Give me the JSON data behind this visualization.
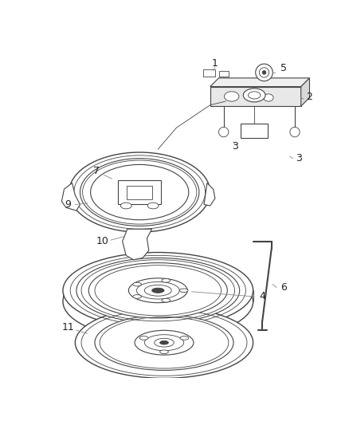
{
  "bg_color": "#ffffff",
  "line_color": "#444444",
  "label_color": "#222222",
  "leader_color": "#888888",
  "figsize": [
    4.38,
    5.33
  ],
  "dpi": 100
}
